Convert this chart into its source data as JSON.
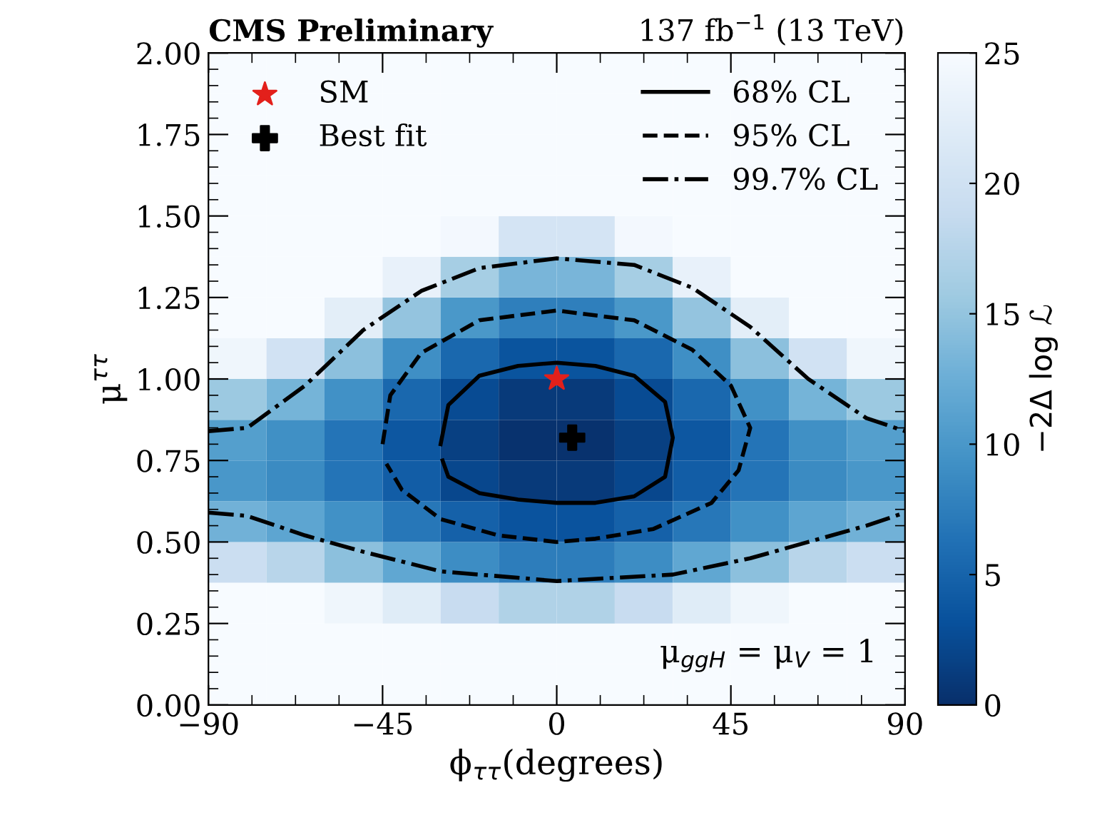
{
  "chart_data": {
    "type": "heatmap",
    "title": "CMS Preliminary",
    "subtitle": "137 fb$^{−1}$ (13 TeV)",
    "xlabel": "ϕ$_{ττ}$(degrees)",
    "ylabel": "μ$^{ττ}$",
    "clabel": "−2Δ log ℒ",
    "annotations": [
      "μ$_{ggH}$ = μ$_{V}$ = 1"
    ],
    "x": [
      -82.5,
      -67.5,
      -52.5,
      -37.5,
      -22.5,
      -7.5,
      7.5,
      22.5,
      37.5,
      52.5,
      67.5,
      82.5
    ],
    "y": [
      0.0625,
      0.1875,
      0.3125,
      0.4375,
      0.5625,
      0.6875,
      0.8125,
      0.9375,
      1.0625,
      1.1875,
      1.3125,
      1.4375,
      1.5625,
      1.6875,
      1.8125,
      1.9375
    ],
    "cells": [
      [
        25,
        25,
        25,
        25,
        25,
        25,
        25,
        25,
        25,
        25,
        25,
        25
      ],
      [
        25,
        25,
        25,
        25,
        25,
        25,
        25,
        25,
        25,
        25,
        25,
        25
      ],
      [
        25,
        25,
        24,
        22,
        19,
        17,
        17,
        19,
        22,
        24,
        25,
        25
      ],
      [
        19.4,
        17.6,
        14.5,
        11.7,
        8.9,
        7.4,
        7.4,
        8.9,
        11.7,
        14.5,
        17.6,
        19.4
      ],
      [
        12.8,
        11.5,
        9.3,
        6.9,
        4.7,
        3.4,
        3.4,
        4.7,
        6.9,
        9.3,
        11.5,
        12.8
      ],
      [
        9.9,
        8.7,
        6.6,
        4.3,
        2.2,
        1.0,
        1.0,
        2.2,
        4.3,
        6.6,
        8.7,
        9.9
      ],
      [
        10.8,
        9.2,
        6.6,
        3.8,
        1.5,
        0.2,
        0.2,
        1.5,
        3.8,
        6.6,
        9.2,
        10.8
      ],
      [
        15.5,
        13.1,
        9.3,
        5.4,
        2.6,
        1.0,
        1.0,
        2.6,
        5.4,
        9.3,
        13.1,
        15.5
      ],
      [
        24,
        20.2,
        14.5,
        9.1,
        5.4,
        3.5,
        3.5,
        5.4,
        9.1,
        14.5,
        20.2,
        24
      ],
      [
        25,
        25,
        22.4,
        15,
        10,
        7.6,
        7.6,
        10,
        15,
        22.4,
        25,
        25
      ],
      [
        25,
        25,
        25,
        23.1,
        16.3,
        13.3,
        13.3,
        16.3,
        23.1,
        25,
        25,
        25
      ],
      [
        25,
        25,
        25,
        25,
        24.5,
        20.6,
        20.6,
        24.5,
        25,
        25,
        25,
        25
      ],
      [
        25,
        25,
        25,
        25,
        25,
        25,
        25,
        25,
        25,
        25,
        25,
        25
      ],
      [
        25,
        25,
        25,
        25,
        25,
        25,
        25,
        25,
        25,
        25,
        25,
        25
      ],
      [
        25,
        25,
        25,
        25,
        25,
        25,
        25,
        25,
        25,
        25,
        25,
        25
      ],
      [
        25,
        25,
        25,
        25,
        25,
        25,
        25,
        25,
        25,
        25,
        25,
        25
      ]
    ],
    "clim": [
      0,
      25
    ],
    "cticks": [
      0,
      5,
      10,
      15,
      20,
      25
    ],
    "xlim": [
      -90,
      90
    ],
    "xticks": [
      {
        "value": -90,
        "label": "−90"
      },
      {
        "value": -45,
        "label": "−45"
      },
      0,
      45,
      90
    ],
    "ylim": [
      0,
      2
    ],
    "yticks": [
      {
        "value": 0,
        "label": "0.00"
      },
      {
        "value": 0.25,
        "label": "0.25"
      },
      {
        "value": 0.5,
        "label": "0.50"
      },
      {
        "value": 0.75,
        "label": "0.75"
      },
      {
        "value": 1,
        "label": "1.00"
      },
      {
        "value": 1.25,
        "label": "1.25"
      },
      {
        "value": 1.5,
        "label": "1.50"
      },
      {
        "value": 1.75,
        "label": "1.75"
      },
      {
        "value": 2,
        "label": "2.00"
      }
    ],
    "legend": "top",
    "series": [
      {
        "type": "line",
        "name": "68% CL",
        "color": "#000000",
        "line_style": "solid",
        "x": [
          -30,
          -28,
          -20,
          -10,
          0,
          10,
          20,
          28,
          30,
          28,
          20,
          10,
          0,
          -10,
          -20,
          -28,
          -29.5
        ],
        "values": [
          0.8,
          0.92,
          1.01,
          1.04,
          1.05,
          1.04,
          1.01,
          0.93,
          0.82,
          0.7,
          0.64,
          0.62,
          0.62,
          0.63,
          0.65,
          0.7,
          0.75
        ]
      },
      {
        "type": "line",
        "name": "95% CL",
        "color": "#000000",
        "line_style": "dashed",
        "x": [
          -45,
          -43,
          -35,
          -20,
          0,
          20,
          35,
          45,
          50,
          47,
          40,
          25,
          10,
          0,
          -15,
          -30,
          -40,
          -44
        ],
        "values": [
          0.8,
          0.95,
          1.08,
          1.18,
          1.21,
          1.18,
          1.09,
          0.98,
          0.85,
          0.72,
          0.62,
          0.54,
          0.51,
          0.5,
          0.52,
          0.57,
          0.66,
          0.74
        ]
      },
      {
        "type": "line",
        "name": "99.7% CL",
        "color": "#000000",
        "line_style": "dashdot",
        "x": [
          -90,
          -80,
          -65,
          -50,
          -35,
          -20,
          0,
          20,
          35,
          50,
          65,
          80,
          90
        ],
        "values": [
          0.84,
          0.85,
          0.98,
          1.15,
          1.27,
          1.34,
          1.37,
          1.35,
          1.28,
          1.16,
          1.0,
          0.88,
          0.84
        ]
      },
      {
        "type": "line",
        "color": "#000000",
        "line_style": "dashdot",
        "x": [
          -90,
          -80,
          -65,
          -50,
          -30,
          0,
          30,
          50,
          65,
          80,
          90
        ],
        "values": [
          0.59,
          0.58,
          0.52,
          0.47,
          0.41,
          0.38,
          0.4,
          0.45,
          0.5,
          0.55,
          0.59
        ]
      },
      {
        "type": "scatter",
        "name": "SM",
        "color": "#e3201b",
        "marker": "star",
        "x": [
          0
        ],
        "values": [
          1.0
        ]
      },
      {
        "type": "scatter",
        "name": "Best fit",
        "color": "#000000",
        "marker": "cross",
        "x": [
          4
        ],
        "values": [
          0.82
        ]
      }
    ]
  }
}
